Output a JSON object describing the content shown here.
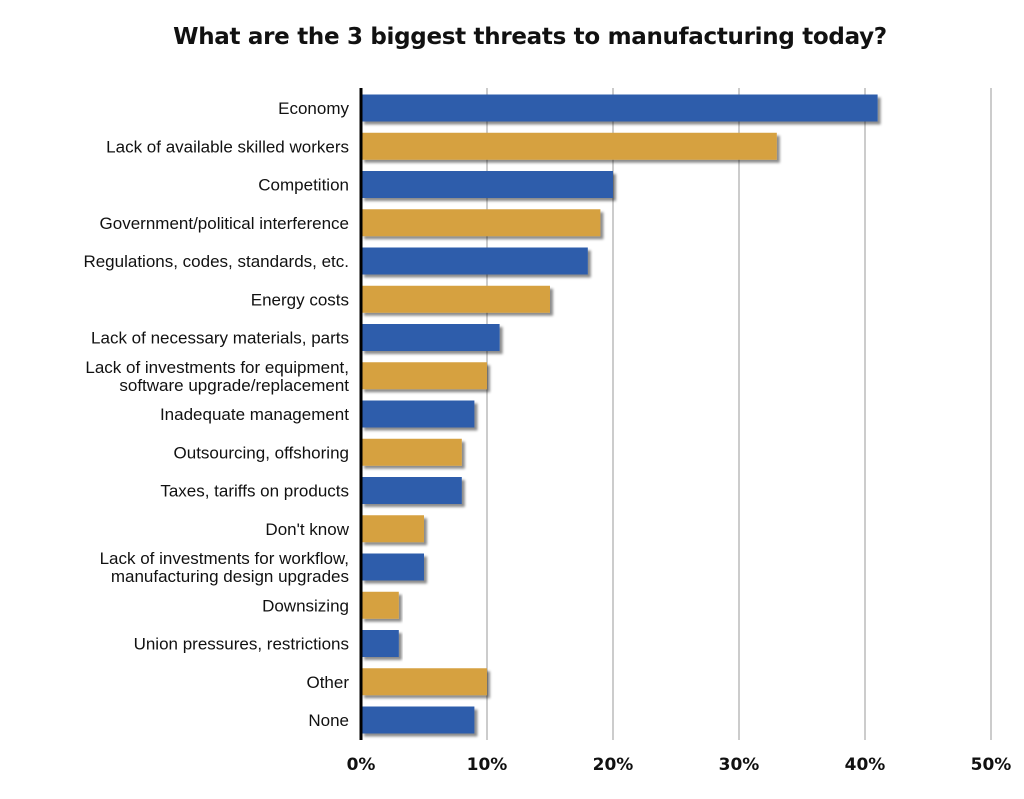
{
  "chart_data": {
    "type": "bar",
    "orientation": "horizontal",
    "title": "What are the 3 biggest threats to manufacturing today?",
    "xlabel": "",
    "ylabel": "",
    "xlim": [
      0,
      50
    ],
    "grid": true,
    "tick_values": [
      0,
      10,
      20,
      30,
      40,
      50
    ],
    "tick_labels": [
      "0%",
      "10%",
      "20%",
      "30%",
      "40%",
      "50%"
    ],
    "categories": [
      [
        "Economy"
      ],
      [
        "Lack of available skilled workers"
      ],
      [
        "Competition"
      ],
      [
        "Government/political interference"
      ],
      [
        "Regulations, codes, standards, etc."
      ],
      [
        "Energy costs"
      ],
      [
        "Lack of necessary materials, parts"
      ],
      [
        "Lack of investments for equipment,",
        "software upgrade/replacement"
      ],
      [
        "Inadequate management"
      ],
      [
        "Outsourcing, offshoring"
      ],
      [
        "Taxes, tariffs on products"
      ],
      [
        "Don't know"
      ],
      [
        "Lack of investments for workflow,",
        "manufacturing design upgrades"
      ],
      [
        "Downsizing"
      ],
      [
        "Union pressures, restrictions"
      ],
      [
        "Other"
      ],
      [
        "None"
      ]
    ],
    "values": [
      41,
      33,
      20,
      19,
      18,
      15,
      11,
      10,
      9,
      8,
      8,
      5,
      5,
      3,
      3,
      10,
      9
    ],
    "colors": [
      "#2f5dab",
      "#d6a140"
    ]
  }
}
